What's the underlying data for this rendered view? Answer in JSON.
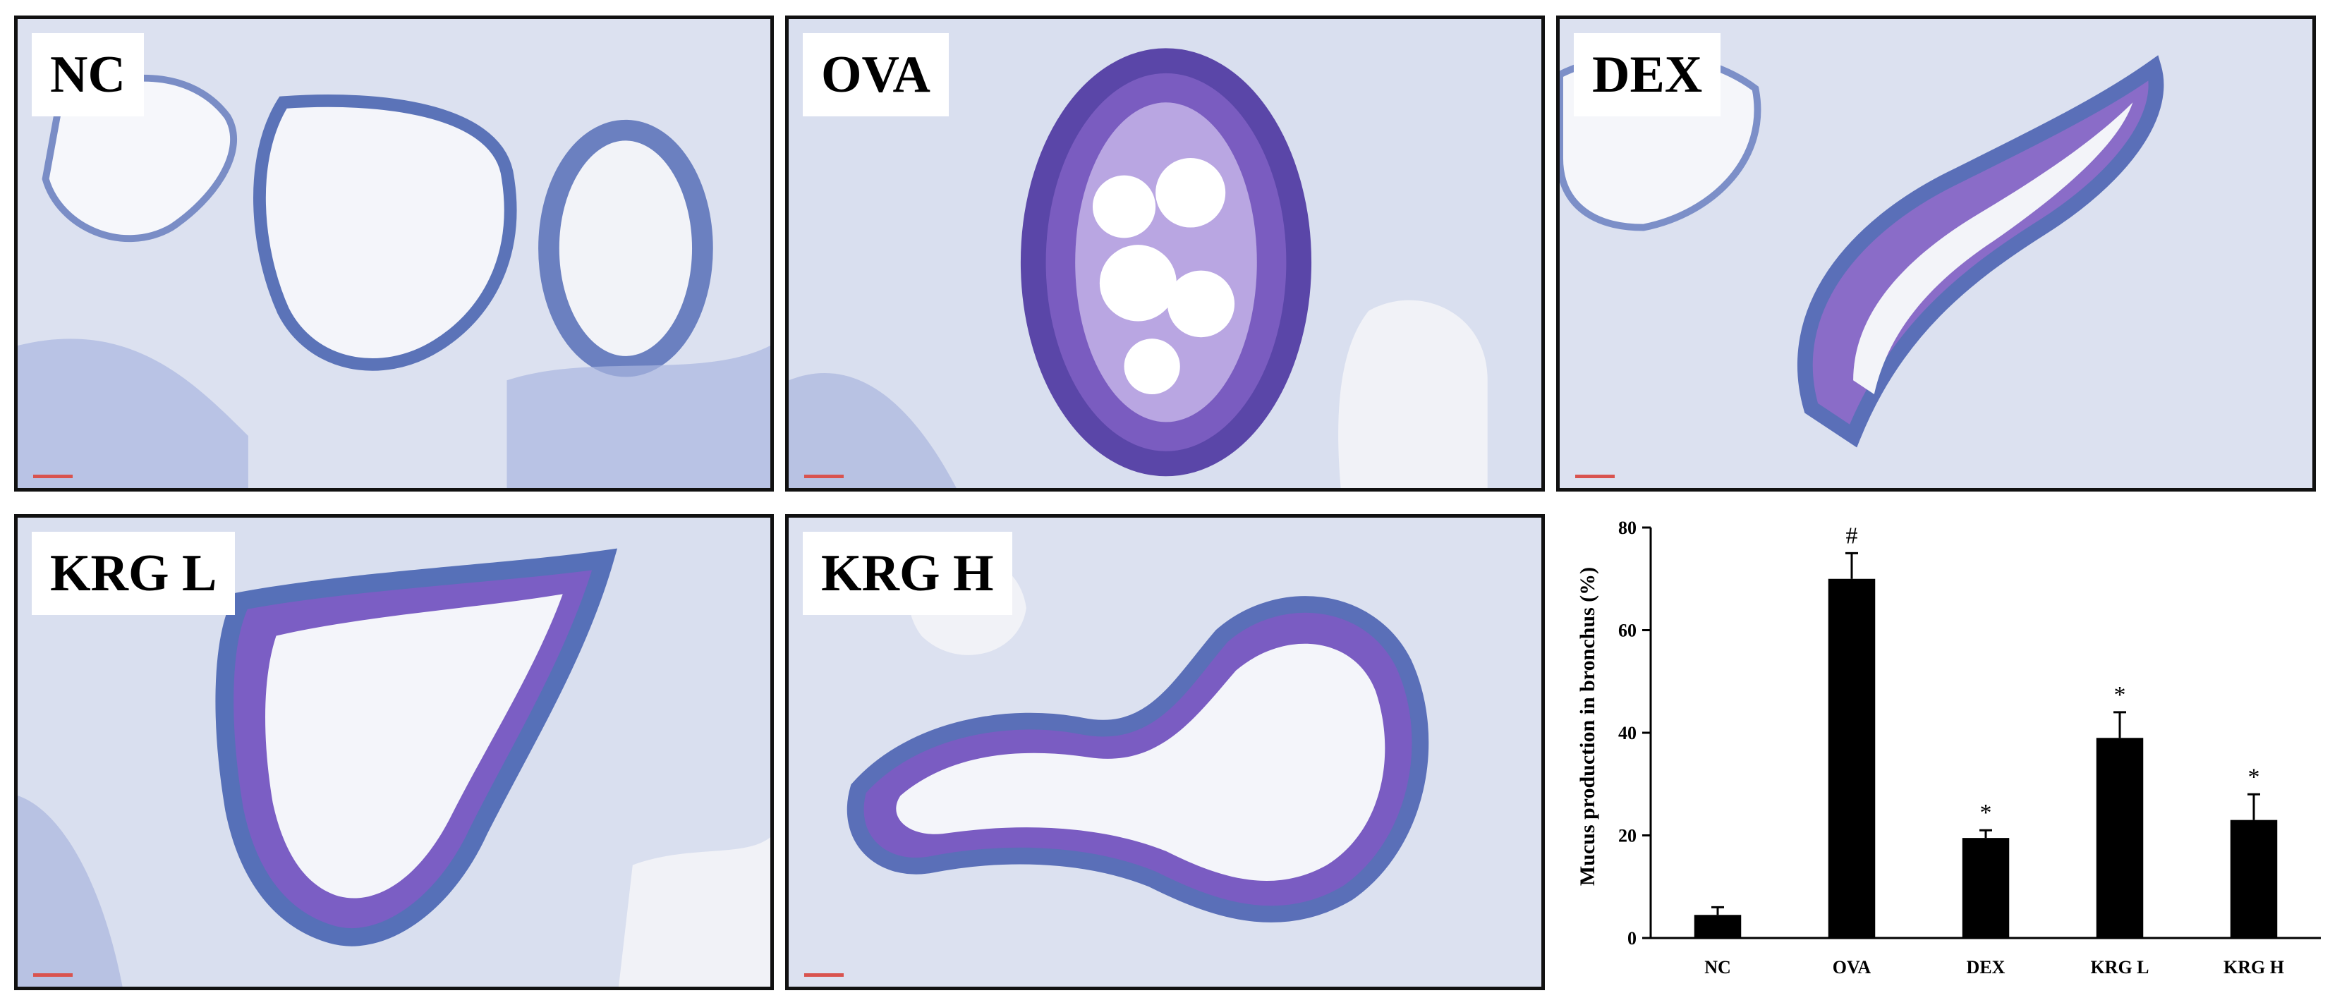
{
  "panels": [
    {
      "label": "NC"
    },
    {
      "label": "OVA"
    },
    {
      "label": "DEX"
    },
    {
      "label": "KRG L"
    },
    {
      "label": "KRG H"
    }
  ],
  "colors": {
    "tissue_light": "#e8ebf4",
    "tissue_blue": "#8c9fd0",
    "tissue_dark": "#4a63ae",
    "mucus_purple": "#6a3fb0",
    "scale_bar": "#d9534f",
    "bar_fill": "#000000"
  },
  "chart_data": {
    "type": "bar",
    "categories": [
      "NC",
      "OVA",
      "DEX",
      "KRG L",
      "KRG H"
    ],
    "values": [
      4.5,
      70,
      19.5,
      39,
      23
    ],
    "errors": [
      1.5,
      5,
      1.5,
      5,
      5
    ],
    "annotations": [
      "",
      "#",
      "*",
      "*",
      "*"
    ],
    "ylabel": "Mucus production in bronchus (%)",
    "xlabel": "",
    "ylim": [
      0,
      80
    ],
    "yticks": [
      0,
      20,
      40,
      60,
      80
    ],
    "grid": false,
    "legend": "none"
  }
}
